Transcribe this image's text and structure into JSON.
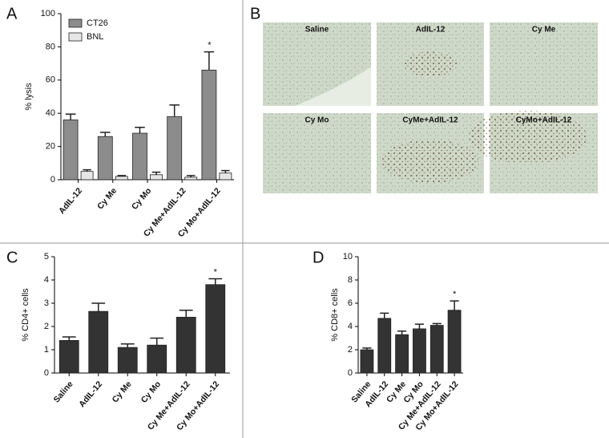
{
  "chart_data": [
    {
      "type": "bar",
      "panel": "A",
      "y_label": "% lysis",
      "categories": [
        "AdIL-12",
        "Cy Me",
        "Cy Mo",
        "Cy Me+AdIL-12",
        "Cy Mo+AdIL-12"
      ],
      "series": [
        {
          "name": "CT26",
          "color": "#8c8c8c",
          "values": [
            36,
            26,
            28,
            38,
            66
          ],
          "errors": [
            3.5,
            2.5,
            3.5,
            7,
            11
          ]
        },
        {
          "name": "BNL",
          "color": "#e6e6e6",
          "values": [
            5,
            2,
            3,
            1.5,
            4
          ],
          "errors": [
            1,
            0.5,
            1.5,
            1,
            1.5
          ]
        }
      ],
      "ylim": [
        0,
        100
      ],
      "yticks": [
        0,
        20,
        40,
        60,
        80,
        100
      ],
      "legend": "upper left",
      "annotations": [
        {
          "text": "*",
          "category": "Cy Mo+AdIL-12"
        }
      ]
    },
    {
      "type": "bar",
      "panel": "C",
      "y_label": "% CD4+ cells",
      "categories": [
        "Saline",
        "AdIL-12",
        "Cy Me",
        "Cy Mo",
        "Cy Me+AdIL-12",
        "Cy Mo+AdIL-12"
      ],
      "series": [
        {
          "color": "#333333",
          "values": [
            1.4,
            2.65,
            1.1,
            1.2,
            2.4,
            3.8
          ],
          "errors": [
            0.15,
            0.35,
            0.15,
            0.3,
            0.3,
            0.25
          ]
        }
      ],
      "ylim": [
        0,
        5
      ],
      "yticks": [
        0,
        1,
        2,
        3,
        4,
        5
      ],
      "annotations": [
        {
          "text": "*",
          "category": "Cy Mo+AdIL-12"
        }
      ]
    },
    {
      "type": "bar",
      "panel": "D",
      "y_label": "% CD8+ cells",
      "categories": [
        "Saline",
        "AdIL-12",
        "Cy Me",
        "Cy Mo",
        "Cy Me+AdIL-12",
        "Cy Mo+AdIL-12"
      ],
      "series": [
        {
          "color": "#333333",
          "values": [
            2.0,
            4.7,
            3.3,
            3.8,
            4.1,
            5.4
          ],
          "errors": [
            0.15,
            0.45,
            0.3,
            0.4,
            0.15,
            0.8
          ]
        }
      ],
      "ylim": [
        0,
        10
      ],
      "yticks": [
        0,
        2,
        4,
        6,
        8,
        10
      ],
      "annotations": [
        {
          "text": "*",
          "category": "Cy Mo+AdIL-12"
        }
      ]
    }
  ],
  "micrographs": {
    "panel": "B",
    "labels": [
      "Saline",
      "AdIL-12",
      "Cy Me",
      "Cy Mo",
      "CyMe+AdIL-12",
      "CyMo+AdIL-12"
    ]
  }
}
